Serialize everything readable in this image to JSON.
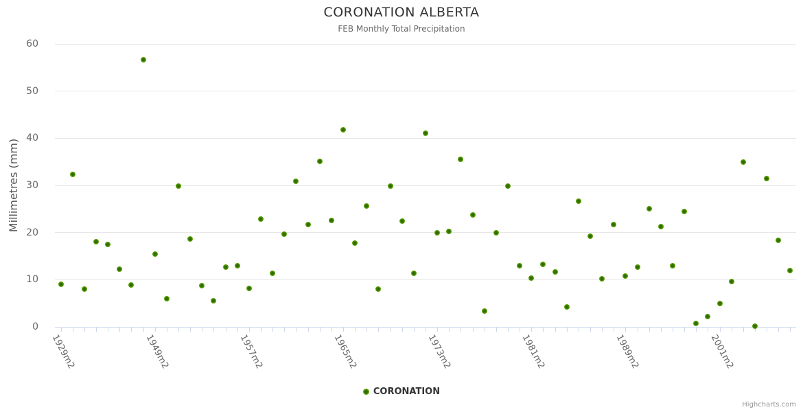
{
  "chart": {
    "title": "CORONATION ALBERTA",
    "subtitle": "FEB Monthly Total Precipitation",
    "y_axis_title": "Millimetres (mm)",
    "legend_label": "CORONATION",
    "credits": "Highcharts.com"
  },
  "colors": {
    "point_outer": "#82c32b",
    "point_mid": "#5d9f04",
    "point_inner": "#2e6c02",
    "grid_line": "#e6e6e6",
    "axis_line": "#ccd6eb",
    "title_text": "#333333",
    "subtitle_text": "#666666",
    "axis_label_text": "#666666",
    "legend_text": "#333333",
    "credits_text": "#999999"
  },
  "chart_data": {
    "type": "scatter",
    "title": "CORONATION ALBERTA",
    "subtitle": "FEB Monthly Total Precipitation",
    "xlabel": "",
    "ylabel": "Millimetres (mm)",
    "ylim": [
      0,
      60
    ],
    "y_ticks": [
      0,
      10,
      20,
      30,
      40,
      50,
      60
    ],
    "grid": true,
    "legend_position": "bottom-center",
    "x_type": "category",
    "x_category_count": 63,
    "x_tick_labels": [
      {
        "index": 0,
        "label": "1929m2"
      },
      {
        "index": 8,
        "label": "1949m2"
      },
      {
        "index": 16,
        "label": "1957m2"
      },
      {
        "index": 24,
        "label": "1965m2"
      },
      {
        "index": 32,
        "label": "1973m2"
      },
      {
        "index": 40,
        "label": "1981m2"
      },
      {
        "index": 48,
        "label": "1989m2"
      },
      {
        "index": 56,
        "label": "2001m2"
      }
    ],
    "series": [
      {
        "name": "CORONATION",
        "values": [
          9.0,
          32.3,
          8.0,
          18.1,
          17.5,
          12.2,
          8.9,
          56.7,
          15.4,
          6.0,
          29.9,
          18.7,
          8.8,
          5.6,
          12.6,
          13.0,
          8.1,
          22.8,
          11.3,
          19.7,
          30.9,
          21.7,
          35.1,
          22.6,
          41.8,
          17.8,
          25.6,
          8.0,
          29.9,
          22.4,
          11.3,
          41.1,
          20.0,
          20.3,
          35.6,
          23.8,
          3.4,
          20.0,
          29.9,
          13.0,
          10.4,
          13.3,
          11.7,
          4.2,
          26.7,
          19.2,
          10.2,
          21.7,
          10.8,
          12.6,
          25.1,
          21.3,
          12.9,
          24.5,
          0.8,
          2.2,
          5.0,
          9.6,
          35.0,
          0.2,
          31.5,
          18.4,
          12.0
        ]
      }
    ]
  }
}
